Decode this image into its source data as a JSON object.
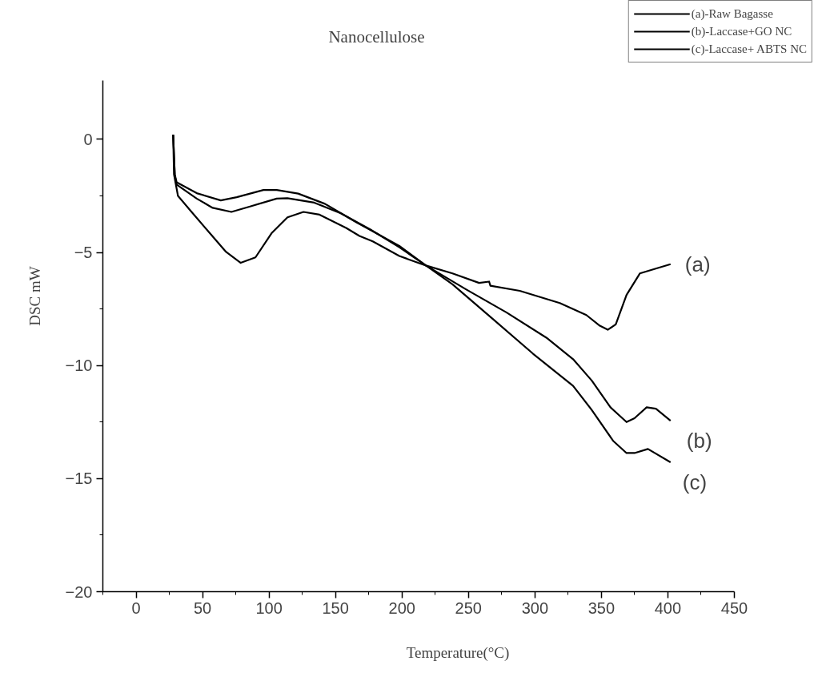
{
  "chart_data": {
    "type": "line",
    "title": "Nanocellulose",
    "xlabel": "Temperature(°C)",
    "ylabel": "DSC mW",
    "xlim": [
      -25,
      450
    ],
    "ylim": [
      -20,
      2.6
    ],
    "xticks": [
      0,
      50,
      100,
      150,
      200,
      250,
      300,
      350,
      400,
      450
    ],
    "yticks": [
      -20,
      -15,
      -10,
      -5,
      0
    ],
    "grid": false,
    "legend": "top right",
    "marker": "none",
    "line_style": "solid",
    "series": [
      {
        "name": "(a)-Raw Bagasse",
        "color": "#000000",
        "x": [
          27.9,
          28.5,
          31.5,
          41.6,
          55.6,
          67.7,
          78.7,
          89.8,
          101.8,
          113.9,
          125.9,
          138,
          158,
          168,
          178,
          198,
          218,
          238,
          258,
          265.5,
          266.5,
          288.6,
          318.7,
          338.7,
          348.8,
          354.8,
          360.8,
          368.9,
          378.9,
          388.9,
          402
        ],
        "values": [
          0.2,
          -1.55,
          -2.5,
          -3.2,
          -4.16,
          -4.98,
          -5.46,
          -5.22,
          -4.16,
          -3.45,
          -3.21,
          -3.33,
          -3.92,
          -4.27,
          -4.51,
          -5.16,
          -5.58,
          -5.93,
          -6.35,
          -6.29,
          -6.47,
          -6.7,
          -7.24,
          -7.77,
          -8.24,
          -8.42,
          -8.18,
          -6.88,
          -5.93,
          -5.75,
          -5.52
        ]
      },
      {
        "name": "(b)-Laccase+GO NC",
        "color": "#000000",
        "x": [
          27.9,
          29.1,
          30.5,
          45.6,
          63.7,
          75.7,
          95.8,
          105.8,
          121.9,
          142,
          166,
          198,
          218,
          248.4,
          278.5,
          308.6,
          328.7,
          342.8,
          356.8,
          368.9,
          374.9,
          384,
          391,
          402
        ],
        "values": [
          0.2,
          -1.55,
          -1.9,
          -2.38,
          -2.7,
          -2.56,
          -2.24,
          -2.24,
          -2.4,
          -2.85,
          -3.68,
          -4.71,
          -5.58,
          -6.64,
          -7.65,
          -8.77,
          -9.72,
          -10.67,
          -11.85,
          -12.5,
          -12.33,
          -11.85,
          -11.91,
          -12.44
        ]
      },
      {
        "name": "(c)-Laccase+ ABTS NC",
        "color": "#000000",
        "x": [
          27.9,
          29.1,
          30.5,
          45.6,
          57.6,
          71.7,
          85.7,
          105.8,
          113.8,
          134,
          154,
          176,
          198,
          218,
          238,
          268.5,
          298.6,
          328.7,
          342.8,
          358.8,
          368.9,
          374.9,
          385,
          402
        ],
        "values": [
          0.2,
          -1.6,
          -2.0,
          -2.62,
          -3.03,
          -3.21,
          -2.97,
          -2.62,
          -2.6,
          -2.8,
          -3.27,
          -3.98,
          -4.77,
          -5.58,
          -6.41,
          -7.95,
          -9.48,
          -10.9,
          -11.97,
          -13.33,
          -13.87,
          -13.87,
          -13.69,
          -14.28
        ]
      }
    ],
    "annotations": [
      "(a)",
      "(b)",
      "(c)"
    ]
  }
}
